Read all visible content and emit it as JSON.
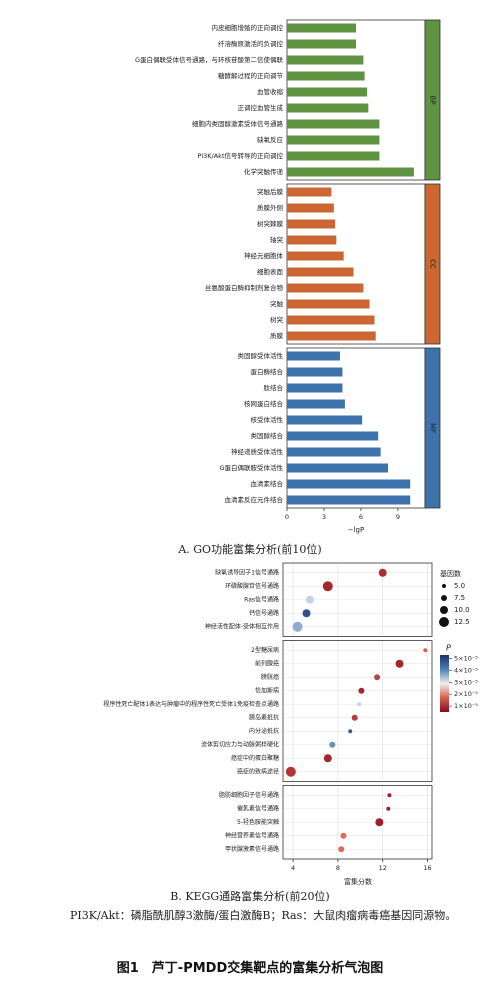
{
  "chart_data": [
    {
      "type": "bar",
      "orientation": "horizontal",
      "caption": "A. GO功能富集分析(前10位)",
      "xlabel": "−lgP",
      "xlim": [
        0,
        11.2
      ],
      "xticks": [
        0,
        3,
        6,
        9
      ],
      "panels": [
        {
          "label": "BP",
          "color": "#5f9341",
          "categories": [
            "内皮细胞增殖的正向调控",
            "纤溶酶原激活的负调控",
            "G蛋白偶联受体信号通路，与环核苷酸第二信使偶联",
            "糖酵解过程的正向调节",
            "血管收缩",
            "正调控血管生成",
            "细胞内类固醇激素受体信号通路",
            "缺氧反应",
            "PI3K/Akt信号转导的正向调控",
            "化学突触传递"
          ],
          "values": [
            5.6,
            5.6,
            6.2,
            6.3,
            6.5,
            6.6,
            7.5,
            7.5,
            7.5,
            10.3
          ]
        },
        {
          "label": "CC",
          "color": "#cc6633",
          "categories": [
            "突触后膜",
            "质膜外侧",
            "树突棘膜",
            "轴突",
            "神经元细胞体",
            "细胞表面",
            "丝氨酸蛋白酶抑制剂复合物",
            "突触",
            "树突",
            "质膜"
          ],
          "values": [
            3.6,
            3.8,
            3.9,
            4.0,
            4.6,
            5.4,
            6.2,
            6.7,
            7.1,
            7.2
          ]
        },
        {
          "label": "MF",
          "color": "#3d72ad",
          "categories": [
            "类固醇受体活性",
            "蛋白酶结合",
            "肽结合",
            "核网蛋白结合",
            "核受体活性",
            "类固醇结合",
            "神经递质受体活性",
            "G蛋白偶联胺受体活性",
            "血清素结合",
            "血清素反应元件结合"
          ],
          "values": [
            4.3,
            4.5,
            4.5,
            4.7,
            6.1,
            7.4,
            7.6,
            8.2,
            10.0,
            10.0
          ]
        }
      ]
    },
    {
      "type": "scatter",
      "caption": "B. KEGG通路富集分析(前20位)",
      "xlabel": "富集分数",
      "xlim": [
        3.1,
        16.4
      ],
      "xticks": [
        4,
        8,
        12,
        16
      ],
      "grid": true,
      "size_title": "基因数",
      "size_ticks": [
        {
          "value": 5,
          "label": "5.0"
        },
        7.5,
        {
          "value": 10,
          "label": "10.0"
        },
        12.5
      ],
      "color_title": "P",
      "clim": [
        5e-06,
        5.3e-05
      ],
      "cticks": [
        {
          "value": 5e-05,
          "label": "5×10⁻⁵"
        },
        {
          "value": 4e-05,
          "label": "4×10⁻⁵"
        },
        {
          "value": 3e-05,
          "label": "3×10⁻⁵"
        },
        {
          "value": 2e-05,
          "label": "2×10⁻⁵"
        },
        {
          "value": 1e-05,
          "label": "1×10⁻⁵"
        }
      ],
      "panels": [
        {
          "categories": [
            "缺氧诱导因子1信号通路",
            "环磷酸腺苷信号通路",
            "Ras信号通路",
            "钙信号通路",
            "神经活性配体-受体相互作用"
          ],
          "values": [
            12.0,
            7.1,
            5.5,
            5.2,
            4.4
          ],
          "sizes": [
            10,
            12.5,
            10,
            10,
            12.5
          ],
          "p": [
            1e-05,
            9e-06,
            3.2e-05,
            4.8e-05,
            3.6e-05
          ]
        },
        {
          "categories": [
            "2型糖尿病",
            "前列腺癌",
            "膀胱癌",
            "恰加斯病",
            "程序性死亡配体1表达与肿瘤中的程序性死亡受体1免疫检查点通路",
            "胰岛素抵抗",
            "内分泌抵抗",
            "流体剪切应力与动脉粥样硬化",
            "癌症中的蛋白聚糖",
            "癌症的致病途径"
          ],
          "values": [
            15.8,
            13.5,
            11.5,
            10.1,
            9.9,
            9.5,
            9.1,
            7.5,
            7.1,
            3.8
          ],
          "sizes": [
            5,
            10,
            7.5,
            7.5,
            5,
            7.5,
            5,
            7.5,
            10,
            12.5
          ],
          "p": [
            1.7e-05,
            9e-06,
            1.3e-05,
            9e-06,
            3.2e-05,
            1.2e-05,
            4.6e-05,
            3.9e-05,
            9e-06,
            1.1e-05
          ]
        },
        {
          "categories": [
            "脂肪细胞因子信号通路",
            "催乳素信号通路",
            "5-羟色胺能突触",
            "神经营养素信号通路",
            "甲状腺激素信号通路"
          ],
          "values": [
            12.6,
            12.5,
            11.7,
            8.5,
            8.3
          ],
          "sizes": [
            5,
            5,
            10,
            7.5,
            7.5
          ],
          "p": [
            8e-06,
            8e-06,
            8e-06,
            1.8e-05,
            1.8e-05
          ]
        }
      ]
    }
  ],
  "note": "PI3K/Akt：磷脂酰肌醇3激酶/蛋白激酶B；Ras：大鼠肉瘤病毒癌基因同源物。",
  "figure_title": "图1　芦丁-PMDD交集靶点的富集分析气泡图"
}
